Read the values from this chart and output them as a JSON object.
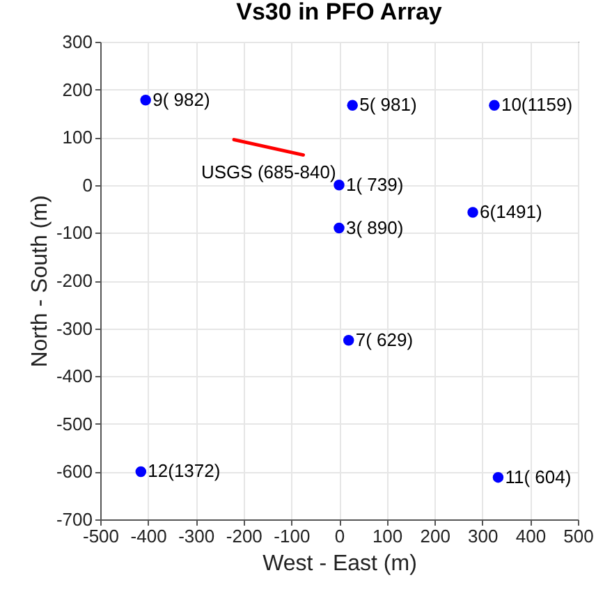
{
  "chart_data": {
    "type": "scatter",
    "title": "Vs30 in PFO Array",
    "xlabel": "West - East (m)",
    "ylabel": "North - South (m)",
    "xlim": [
      -500,
      500
    ],
    "xticks": [
      -500,
      -400,
      -300,
      -200,
      -100,
      0,
      100,
      200,
      300,
      400,
      500
    ],
    "ylim": [
      -700,
      300
    ],
    "yticks": [
      -700,
      -600,
      -500,
      -400,
      -300,
      -200,
      -100,
      0,
      100,
      200,
      300
    ],
    "grid": true,
    "marker": "circle",
    "series": [
      {
        "color": "#0000ff",
        "x": [
          0,
          0,
          28,
          280,
          20,
          -405,
          325,
          333,
          -415
        ],
        "values": [
          0,
          -90,
          167,
          -57,
          -325,
          178,
          167,
          -612,
          -600
        ],
        "value_labels": [
          "1( 739)",
          "3( 890)",
          "5( 981)",
          "6(1491)",
          "7( 629)",
          "9( 982)",
          "10(1159)",
          "11( 604)",
          "12(1372)"
        ]
      },
      {
        "type": "line",
        "name": "USGS (685-840)",
        "marker": "none",
        "color": "#ff0000",
        "x": [
          -220,
          -75
        ],
        "values": [
          95,
          63
        ]
      }
    ]
  }
}
